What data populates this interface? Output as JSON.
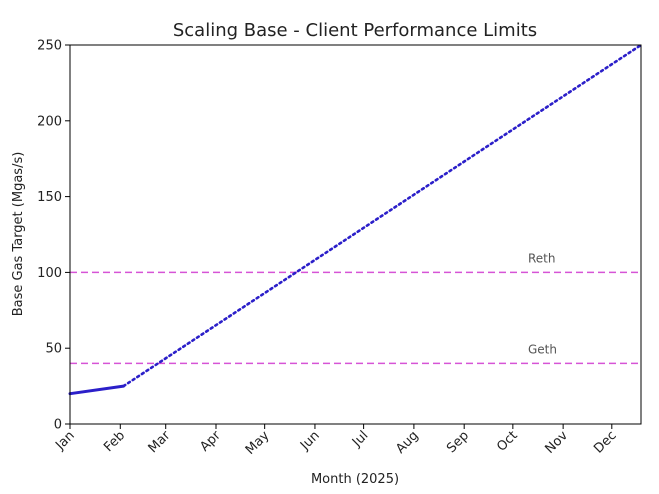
{
  "chart_data": {
    "type": "line",
    "title": "Scaling Base - Client Performance Limits",
    "xlabel": "Month (2025)",
    "ylabel": "Base Gas Target (Mgas/s)",
    "categories": [
      "Jan",
      "Feb",
      "Mar",
      "Apr",
      "May",
      "Jun",
      "Jul",
      "Aug",
      "Sep",
      "Oct",
      "Nov",
      "Dec"
    ],
    "xlim": [
      "2025-01-01",
      "2025-12-19"
    ],
    "ylim": [
      0,
      250
    ],
    "yticks": [
      0,
      50,
      100,
      150,
      200,
      250
    ],
    "grid": false,
    "series": [
      {
        "style": "solid",
        "color": "#2b1fc9",
        "points": [
          {
            "x": "2025-01-01",
            "y": 20
          },
          {
            "x": "2025-02-03",
            "y": 25
          }
        ]
      },
      {
        "style": "dotted",
        "color": "#2b1fc9",
        "points": [
          {
            "x": "2025-02-03",
            "y": 25
          },
          {
            "x": "2025-12-19",
            "y": 250
          }
        ]
      }
    ],
    "reference_lines": [
      {
        "label": "Reth",
        "y": 100,
        "color": "#d654d6",
        "style": "dashed"
      },
      {
        "label": "Geth",
        "y": 40,
        "color": "#d654d6",
        "style": "dashed"
      }
    ]
  }
}
